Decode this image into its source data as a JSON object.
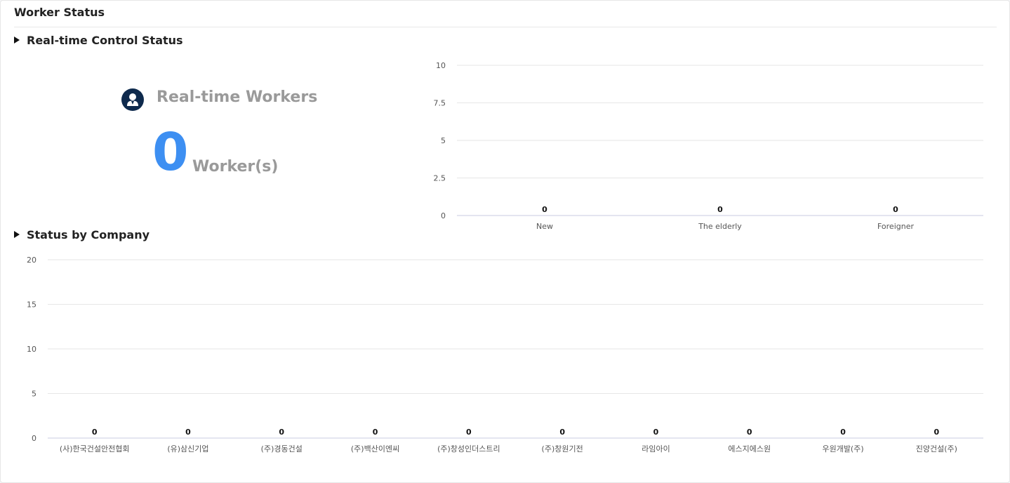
{
  "panel": {
    "title": "Worker Status"
  },
  "sections": {
    "realtime": "Real-time Control Status",
    "company": "Status by Company"
  },
  "realtime": {
    "icon": "worker-avatar-icon",
    "title": "Real-time Workers",
    "count": "0",
    "unit": "Worker(s)"
  },
  "colors": {
    "accent": "#3d8ff2",
    "icon_bg": "#0e2a4d",
    "muted_text": "#9a9a9a",
    "gridline": "#e6e6e6",
    "axis_line": "#c8cbe0"
  },
  "chart_data": [
    {
      "type": "bar",
      "title": "",
      "categories": [
        "New",
        "The elderly",
        "Foreigner"
      ],
      "values": [
        0,
        0,
        0
      ],
      "data_labels": [
        "0",
        "0",
        "0"
      ],
      "ylim": [
        0,
        10
      ],
      "yticks": [
        "0",
        "2.5",
        "5",
        "7.5",
        "10"
      ],
      "xlabel": "",
      "ylabel": "",
      "grid": true,
      "legend": "none"
    },
    {
      "type": "bar",
      "title": "",
      "categories": [
        "(사)한국건설안전협회",
        "(유)삼신기업",
        "(주)경동건설",
        "(주)백산이엔씨",
        "(주)창성인더스트리",
        "(주)창원기전",
        "라임아이",
        "에스지에스원",
        "우원개발(주)",
        "진양건설(주)"
      ],
      "values": [
        0,
        0,
        0,
        0,
        0,
        0,
        0,
        0,
        0,
        0
      ],
      "data_labels": [
        "0",
        "0",
        "0",
        "0",
        "0",
        "0",
        "0",
        "0",
        "0",
        "0"
      ],
      "ylim": [
        0,
        20
      ],
      "yticks": [
        "0",
        "5",
        "10",
        "15",
        "20"
      ],
      "xlabel": "",
      "ylabel": "",
      "grid": true,
      "legend": "none"
    }
  ]
}
